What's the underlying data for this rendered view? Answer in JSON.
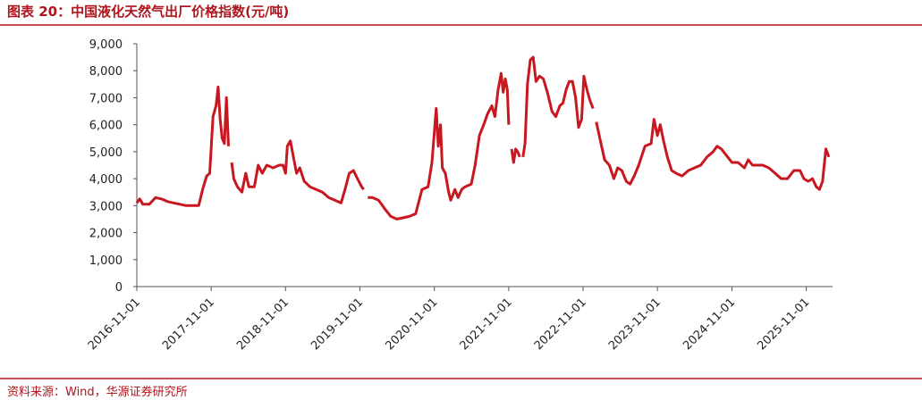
{
  "chart_data": {
    "type": "line",
    "title": "图表 20：中国液化天然气出厂价格指数(元/吨)",
    "source": "资料来源：Wind，华源证券研究所",
    "color": "#c8171e",
    "xlim": [
      "2016-11-01",
      "2026-03-10"
    ],
    "xticks": [
      "2016-11-01",
      "2017-11-01",
      "2018-11-01",
      "2019-11-01",
      "2020-11-01",
      "2021-11-01",
      "2022-11-01",
      "2023-11-01",
      "2024-11-01",
      "2025-11-01"
    ],
    "ylim": [
      0,
      9000
    ],
    "yticks": [
      0,
      {
        "value": 1000,
        "label": "1,000"
      },
      {
        "value": 2000,
        "label": "2,000"
      },
      {
        "value": 3000,
        "label": "3,000"
      },
      {
        "value": 4000,
        "label": "4,000"
      },
      {
        "value": 5000,
        "label": "5,000"
      },
      {
        "value": 6000,
        "label": "6,000"
      },
      {
        "value": 7000,
        "label": "7,000"
      },
      {
        "value": 8000,
        "label": "8,000"
      },
      {
        "value": 9000,
        "label": "9,000"
      }
    ],
    "x": [
      "2016-11-01",
      "2016-11-15",
      "2016-12-01",
      "2017-01-01",
      "2017-02-01",
      "2017-03-01",
      "2017-04-01",
      "2017-05-01",
      "2017-06-01",
      "2017-07-01",
      "2017-08-01",
      "2017-09-01",
      "2017-09-20",
      "2017-10-10",
      "2017-10-25",
      "2017-11-10",
      "2017-11-25",
      "2017-12-05",
      "2017-12-15",
      "2017-12-25",
      "2018-01-05",
      "2018-01-15",
      "2018-01-25",
      "2018-02-01",
      "2018-02-10",
      "2018-02-20",
      "2018-03-10",
      "2018-04-01",
      "2018-04-20",
      "2018-05-05",
      "2018-06-01",
      "2018-06-20",
      "2018-07-10",
      "2018-08-01",
      "2018-09-01",
      "2018-10-01",
      "2018-10-20",
      "2018-11-01",
      "2018-11-10",
      "2018-11-25",
      "2018-12-10",
      "2018-12-25",
      "2019-01-10",
      "2019-02-01",
      "2019-03-01",
      "2019-04-01",
      "2019-05-01",
      "2019-06-01",
      "2019-07-01",
      "2019-08-01",
      "2019-08-20",
      "2019-09-10",
      "2019-10-01",
      "2019-10-20",
      "2019-11-10",
      "2019-11-20",
      "2019-12-01",
      "2019-12-10",
      "2020-01-01",
      "2020-02-01",
      "2020-03-01",
      "2020-04-01",
      "2020-05-01",
      "2020-06-01",
      "2020-07-01",
      "2020-08-01",
      "2020-09-01",
      "2020-10-01",
      "2020-10-20",
      "2020-11-10",
      "2020-11-20",
      "2020-12-01",
      "2020-12-10",
      "2020-12-25",
      "2021-01-10",
      "2021-01-20",
      "2021-02-10",
      "2021-02-25",
      "2021-03-15",
      "2021-04-01",
      "2021-05-01",
      "2021-05-20",
      "2021-06-10",
      "2021-07-01",
      "2021-07-20",
      "2021-08-10",
      "2021-08-25",
      "2021-09-10",
      "2021-09-25",
      "2021-10-05",
      "2021-10-15",
      "2021-10-25",
      "2021-11-01",
      "2021-11-08",
      "2021-11-15",
      "2021-11-25",
      "2021-12-05",
      "2021-12-15",
      "2021-12-25",
      "2022-01-02",
      "2022-01-10",
      "2022-01-20",
      "2022-02-01",
      "2022-02-15",
      "2022-03-01",
      "2022-03-15",
      "2022-04-01",
      "2022-04-20",
      "2022-05-10",
      "2022-06-01",
      "2022-06-20",
      "2022-07-10",
      "2022-07-25",
      "2022-08-10",
      "2022-08-25",
      "2022-09-10",
      "2022-09-25",
      "2022-10-10",
      "2022-10-25",
      "2022-11-05",
      "2022-11-20",
      "2022-12-05",
      "2022-12-20",
      "2022-12-28",
      "2023-01-05",
      "2023-01-25",
      "2023-02-15",
      "2023-03-10",
      "2023-04-01",
      "2023-04-20",
      "2023-05-10",
      "2023-06-01",
      "2023-06-20",
      "2023-07-10",
      "2023-08-01",
      "2023-09-01",
      "2023-10-01",
      "2023-10-15",
      "2023-11-01",
      "2023-11-15",
      "2023-12-01",
      "2023-12-20",
      "2024-01-10",
      "2024-02-01",
      "2024-03-01",
      "2024-04-01",
      "2024-05-01",
      "2024-06-01",
      "2024-07-01",
      "2024-08-01",
      "2024-08-20",
      "2024-09-10",
      "2024-10-01",
      "2024-11-01",
      "2024-12-01",
      "2025-01-01",
      "2025-01-20",
      "2025-02-10",
      "2025-03-01",
      "2025-04-01",
      "2025-05-01",
      "2025-06-01",
      "2025-07-01",
      "2025-08-01",
      "2025-09-01",
      "2025-10-01",
      "2025-10-20",
      "2025-11-10",
      "2025-12-01",
      "2025-12-20",
      "2026-01-05",
      "2026-01-20",
      "2026-02-05",
      "2026-02-20"
    ],
    "values": [
      3100,
      3250,
      3050,
      3050,
      3300,
      3250,
      3150,
      3100,
      3050,
      3000,
      3000,
      3000,
      3600,
      4100,
      4200,
      6300,
      6700,
      7400,
      6200,
      5500,
      5300,
      7000,
      5200,
      null,
      4600,
      4000,
      3700,
      3500,
      4200,
      3700,
      3700,
      4500,
      4200,
      4500,
      4400,
      4500,
      4500,
      4200,
      5200,
      5400,
      4800,
      4200,
      4400,
      3900,
      3700,
      3600,
      3500,
      3300,
      3200,
      3100,
      3600,
      4200,
      4300,
      4000,
      3700,
      3600,
      null,
      3300,
      3300,
      3200,
      2900,
      2600,
      2500,
      2550,
      2600,
      2700,
      3600,
      3700,
      4600,
      6600,
      5200,
      6000,
      4400,
      4200,
      3500,
      3200,
      3600,
      3300,
      3600,
      3700,
      3800,
      4500,
      5600,
      6000,
      6400,
      6700,
      6300,
      7300,
      7900,
      7200,
      7700,
      7300,
      6000,
      null,
      5100,
      4600,
      5100,
      5000,
      4800,
      null,
      4800,
      5300,
      7500,
      8400,
      8500,
      7600,
      7800,
      7700,
      7200,
      6500,
      6300,
      6700,
      6800,
      7300,
      7600,
      7600,
      7000,
      5900,
      6200,
      7800,
      7300,
      6900,
      6600,
      null,
      6100,
      5400,
      4700,
      4500,
      4000,
      4400,
      4300,
      3900,
      3800,
      4100,
      4500,
      5200,
      5300,
      6200,
      5600,
      6000,
      5400,
      4800,
      4300,
      4200,
      4100,
      4300,
      4400,
      4500,
      4800,
      5000,
      5200,
      5100,
      4900,
      4600,
      4600,
      4400,
      4700,
      4500,
      4500,
      4500,
      4400,
      4200,
      4000,
      4000,
      4300,
      4300,
      4000,
      3900,
      4000,
      3700,
      3600,
      3900,
      5100,
      4800
    ]
  }
}
